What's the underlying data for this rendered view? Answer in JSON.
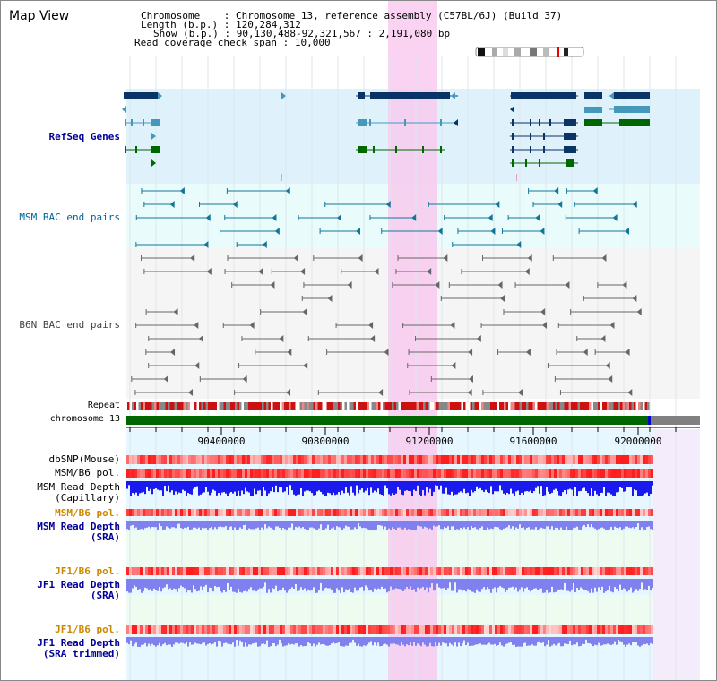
{
  "page": {
    "title": "Map View"
  },
  "info": {
    "chromosome_key": "Chromosome",
    "chromosome_value": "Chromosome 13, reference assembly (C57BL/6J) (Build 37)",
    "length_key": "Length (b.p.)",
    "length_value": "120,284,312",
    "show_key": "Show (b.p.)",
    "show_value": "90,130,488-92,321,567 : 2,191,080 bp",
    "span_key": "Read coverage check span",
    "span_value": "10,000"
  },
  "axis": {
    "ticks": [
      "90400000",
      "90800000",
      "91200000",
      "91600000",
      "92000000"
    ]
  },
  "tracks": {
    "refseq": "RefSeq Genes",
    "msm_bac": "MSM BAC end pairs",
    "b6n_bac": "B6N BAC end pairs",
    "repeat": "Repeat",
    "chromosome": "chromosome 13",
    "dbsnp": "dbSNP(Mouse)",
    "msm_b6_pol": "MSM/B6 pol.",
    "msm_depth_cap_1": "MSM Read Depth",
    "msm_depth_cap_2": "(Capillary)",
    "msm_b6_pol_2": "MSM/B6 pol.",
    "msm_depth_sra_1": "MSM Read Depth",
    "msm_depth_sra_2": "(SRA)",
    "jf1_b6_pol": "JF1/B6 pol.",
    "jf1_depth_sra_1": "JF1 Read Depth",
    "jf1_depth_sra_2": "(SRA)",
    "jf1_b6_pol_2": "JF1/B6 pol.",
    "jf1_depth_trim_1": "JF1 Read Depth",
    "jf1_depth_trim_2": "(SRA trimmed)"
  },
  "colors": {
    "refseq_label": "#000099",
    "msm_label": "#006699",
    "b6n_label": "#444444",
    "pol_label": "#cc8800",
    "depth_label": "#000099",
    "highlight": "#f9c8ef",
    "refseq_bg": "#dff2fb",
    "bac_bg": "#e9fbfb",
    "gene_dark": "#0a3366",
    "gene_mid": "#4499bb",
    "gene_green": "#006600",
    "chrom_green": "#006600",
    "chrom_gray": "#808080",
    "depth_blue": "#1a1aee",
    "depth_light": "#8080ee"
  }
}
